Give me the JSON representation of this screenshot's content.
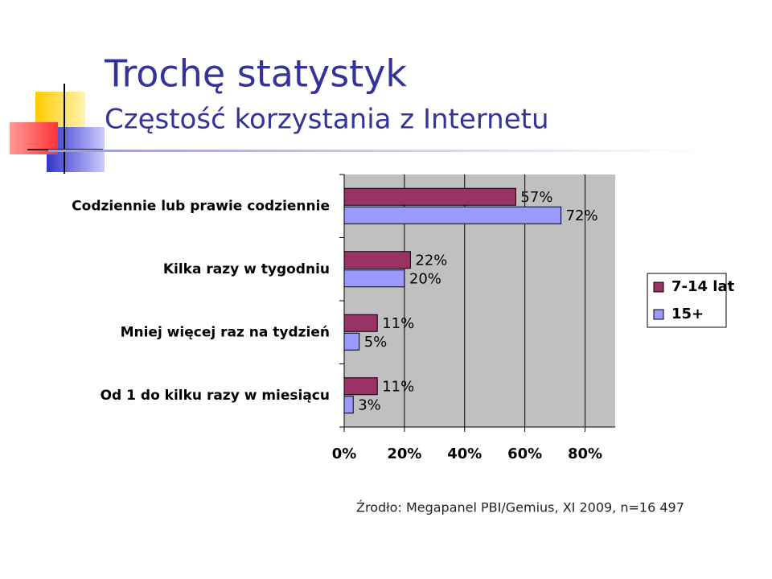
{
  "chart_data": {
    "type": "bar",
    "orientation": "horizontal",
    "title": "Trochę statystyk",
    "subtitle": "Częstość korzystania z Internetu",
    "source": "Źrodło: Megapanel PBI/Gemius, XI 2009, n=16 497",
    "categories": [
      "Codziennie lub prawie codziennie",
      "Kilka razy w tygodniu",
      "Mniej więcej raz na tydzień",
      "Od 1 do kilku razy w miesiącu"
    ],
    "series": [
      {
        "name": "7-14 lat",
        "color": "#993366",
        "values": [
          57,
          22,
          11,
          11
        ],
        "value_labels": [
          "57%",
          "22%",
          "11%",
          "11%"
        ]
      },
      {
        "name": "15+",
        "color": "#9999ff",
        "values": [
          72,
          20,
          5,
          3
        ],
        "value_labels": [
          "72%",
          "20%",
          "5%",
          "3%"
        ]
      }
    ],
    "xlim": [
      0,
      90
    ],
    "xticks": [
      {
        "value": 0,
        "label": "0%"
      },
      {
        "value": 20,
        "label": "20%"
      },
      {
        "value": 40,
        "label": "40%"
      },
      {
        "value": 60,
        "label": "60%"
      },
      {
        "value": 80,
        "label": "80%"
      }
    ],
    "grid": true,
    "legend": "right"
  }
}
